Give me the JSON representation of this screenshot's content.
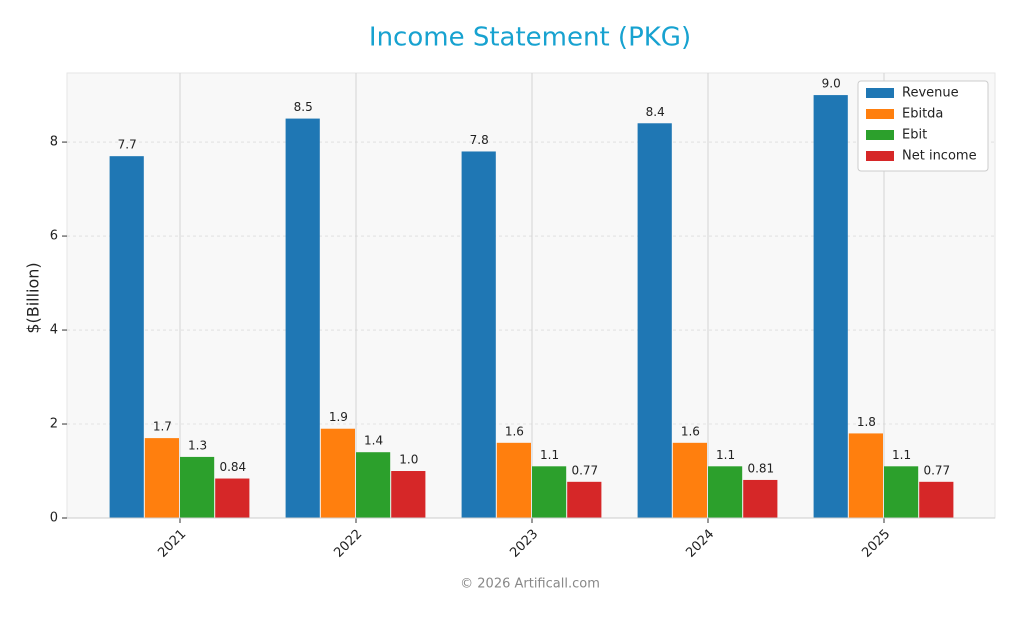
{
  "chart_data": {
    "type": "bar",
    "title": "Income Statement (PKG)",
    "y_label": "$(Billion)",
    "footer": "© 2026 Artificall.com",
    "categories": [
      "2021",
      "2022",
      "2023",
      "2024",
      "2025"
    ],
    "series": [
      {
        "name": "Revenue",
        "color": "#1f77b4",
        "values": [
          7.7,
          8.5,
          7.8,
          8.4,
          9.0
        ],
        "value_labels": [
          "7.7",
          "8.5",
          "7.8",
          "8.4",
          "9.0"
        ]
      },
      {
        "name": "Ebitda",
        "color": "#ff7f0e",
        "values": [
          1.7,
          1.9,
          1.6,
          1.6,
          1.8
        ],
        "value_labels": [
          "1.7",
          "1.9",
          "1.6",
          "1.6",
          "1.8"
        ]
      },
      {
        "name": "Ebit",
        "color": "#2ca02c",
        "values": [
          1.3,
          1.4,
          1.1,
          1.1,
          1.1
        ],
        "value_labels": [
          "1.3",
          "1.4",
          "1.1",
          "1.1",
          "1.1"
        ]
      },
      {
        "name": "Net income",
        "color": "#d62728",
        "values": [
          0.84,
          1.0,
          0.77,
          0.81,
          0.77
        ],
        "value_labels": [
          "0.84",
          "1.0",
          "0.77",
          "0.81",
          "0.77"
        ]
      }
    ],
    "ylim": [
      0,
      9.47
    ],
    "yticks": [
      0,
      2,
      4,
      6,
      8
    ],
    "grid": true,
    "legend": "upper right"
  }
}
